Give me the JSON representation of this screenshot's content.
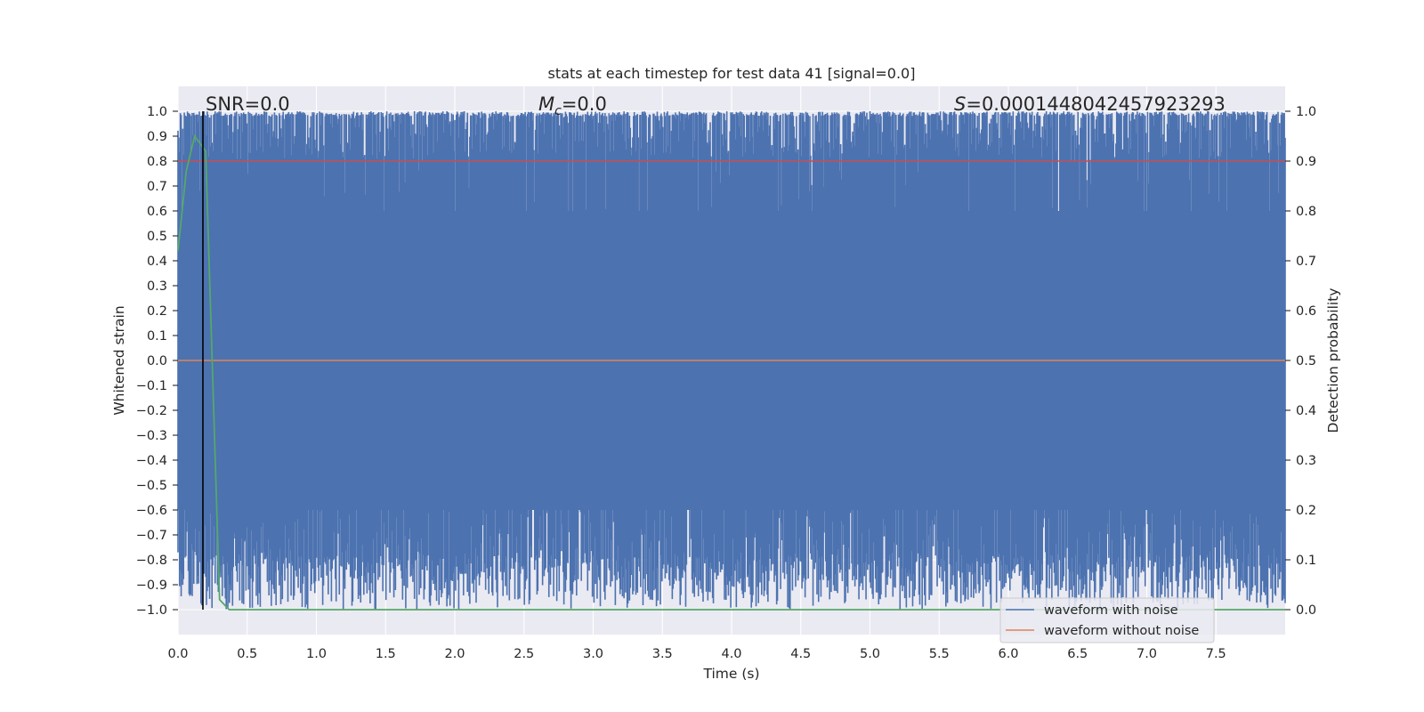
{
  "chart_data": {
    "type": "line",
    "title": "stats at each timestep for test data 41 [signal=0.0]",
    "xlabel": "Time (s)",
    "ylabel": "Whitened strain",
    "y2label": "Detection probability",
    "xlim": [
      0.0,
      8.0
    ],
    "ylim": [
      -1.1,
      1.1
    ],
    "y2lim": [
      -0.05,
      1.05
    ],
    "x_ticks": [
      0.0,
      0.5,
      1.0,
      1.5,
      2.0,
      2.5,
      3.0,
      3.5,
      4.0,
      4.5,
      5.0,
      5.5,
      6.0,
      6.5,
      7.0,
      7.5
    ],
    "x_tick_labels": [
      "0.0",
      "0.5",
      "1.0",
      "1.5",
      "2.0",
      "2.5",
      "3.0",
      "3.5",
      "4.0",
      "4.5",
      "5.0",
      "5.5",
      "6.0",
      "6.5",
      "7.0",
      "7.5"
    ],
    "y_ticks": [
      1.0,
      0.9,
      0.8,
      0.7,
      0.6,
      0.5,
      0.4,
      0.3,
      0.2,
      0.1,
      0.0,
      -0.1,
      -0.2,
      -0.3,
      -0.4,
      -0.5,
      -0.6,
      -0.7,
      -0.8,
      -0.9,
      -1.0
    ],
    "y_tick_labels": [
      "1.0",
      "0.9",
      "0.8",
      "0.7",
      "0.6",
      "0.5",
      "0.4",
      "0.3",
      "0.2",
      "0.1",
      "0.0",
      "−0.1",
      "−0.2",
      "−0.3",
      "−0.4",
      "−0.5",
      "−0.6",
      "−0.7",
      "−0.8",
      "−0.9",
      "−1.0"
    ],
    "y2_ticks": [
      1.0,
      0.9,
      0.8,
      0.7,
      0.6,
      0.5,
      0.4,
      0.3,
      0.2,
      0.1,
      0.0
    ],
    "y2_tick_labels": [
      "1.0",
      "0.9",
      "0.8",
      "0.7",
      "0.6",
      "0.5",
      "0.4",
      "0.3",
      "0.2",
      "0.1",
      "0.0"
    ],
    "annotations": {
      "snr": "SNR=0.0",
      "mc_symbol": "M",
      "mc_sub": "c",
      "mc_value": "=0.0",
      "s_symbol": "S",
      "s_value": "=0.0001448042457923293"
    },
    "series": [
      {
        "name": "waveform with noise",
        "color": "#4c72b0",
        "description": "whitened noisy strain filling roughly -1.0 to 1.0 across 0-8 s",
        "envelope_upper": [
          0.98,
          1.0
        ],
        "envelope_lower": [
          -0.6,
          -1.0
        ]
      },
      {
        "name": "waveform without noise",
        "color": "#dd8452",
        "x": [
          0.0,
          8.0
        ],
        "y": [
          0.0,
          0.0
        ]
      },
      {
        "name": "detection probability",
        "color": "#55a868",
        "axis": "right",
        "x": [
          0.0,
          0.06,
          0.12,
          0.2,
          0.3,
          0.37,
          8.0
        ],
        "y": [
          0.72,
          0.88,
          0.95,
          0.92,
          0.02,
          0.0,
          0.0
        ]
      },
      {
        "name": "threshold",
        "color": "#c44e52",
        "axis": "right",
        "x": [
          0.0,
          8.0
        ],
        "y": [
          0.9,
          0.9
        ]
      }
    ],
    "vline": {
      "x": 0.18,
      "color": "#000000"
    },
    "legend": {
      "position": "lower-right",
      "entries": [
        "waveform with noise",
        "waveform without noise"
      ]
    },
    "noise_seed": 41
  }
}
